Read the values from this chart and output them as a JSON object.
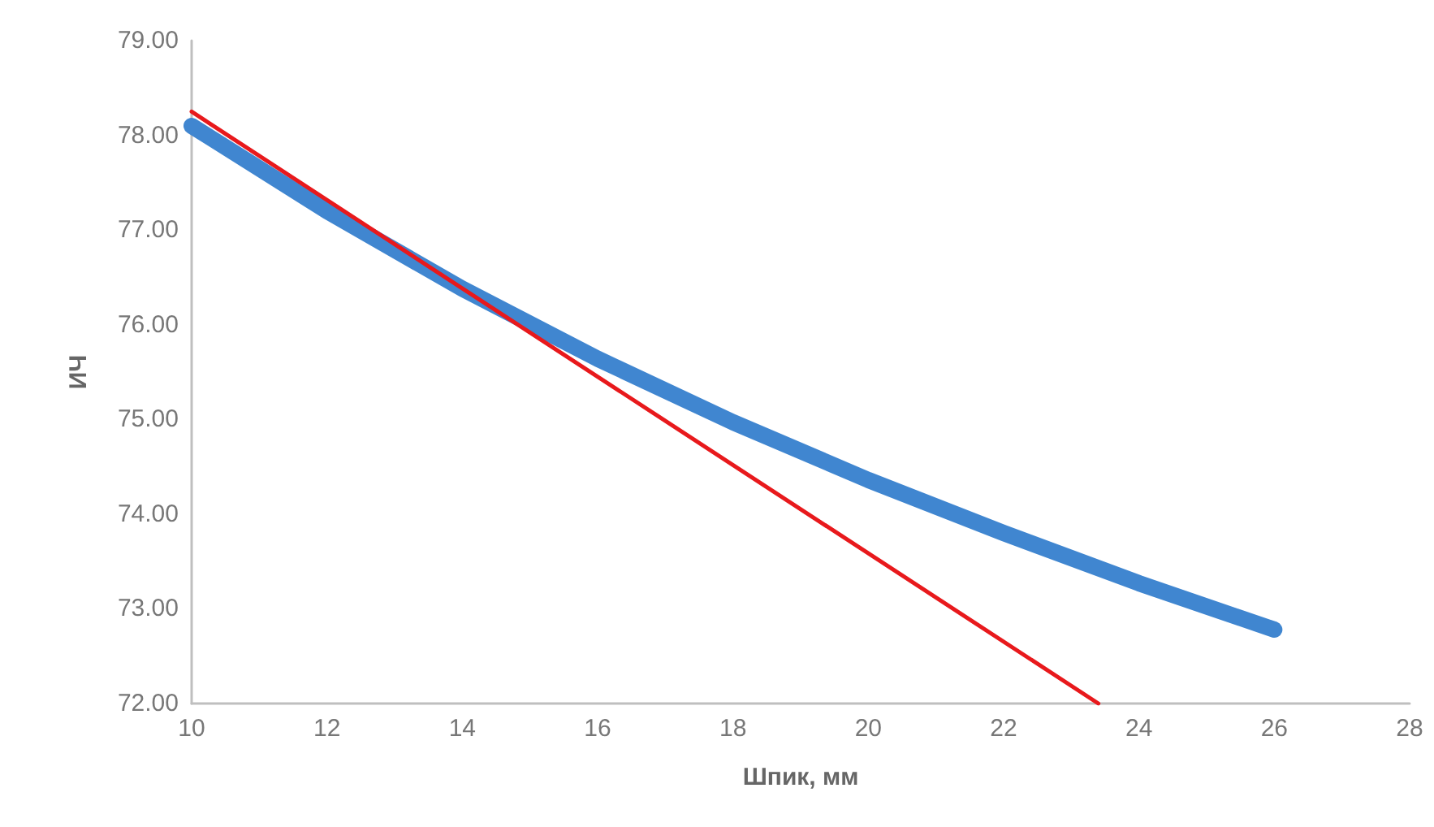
{
  "chart_data": {
    "type": "line",
    "xlabel": "Шпик, мм",
    "ylabel": "ИЧ",
    "xlim": [
      10,
      28
    ],
    "xticks": [
      10,
      12,
      14,
      16,
      18,
      20,
      22,
      24,
      26,
      28
    ],
    "ylim": [
      72,
      79
    ],
    "yticks": [
      {
        "value": 72,
        "label": "72.00"
      },
      {
        "value": 73,
        "label": "73.00"
      },
      {
        "value": 74,
        "label": "74.00"
      },
      {
        "value": 75,
        "label": "75.00"
      },
      {
        "value": 76,
        "label": "76.00"
      },
      {
        "value": 77,
        "label": "77.00"
      },
      {
        "value": 78,
        "label": "78.00"
      },
      {
        "value": 79,
        "label": "79.00"
      }
    ],
    "grid": false,
    "marker": "none",
    "line_style": "solid",
    "series": [
      {
        "color": "#4086d0",
        "x": [
          10,
          12,
          14,
          16,
          18,
          20,
          22,
          24,
          26
        ],
        "values": [
          78.1,
          77.2,
          76.38,
          75.64,
          74.97,
          74.36,
          73.8,
          73.27,
          72.78
        ]
      },
      {
        "color": "#e8191c",
        "x": [
          10,
          23.4
        ],
        "values": [
          78.25,
          72
        ]
      }
    ]
  }
}
